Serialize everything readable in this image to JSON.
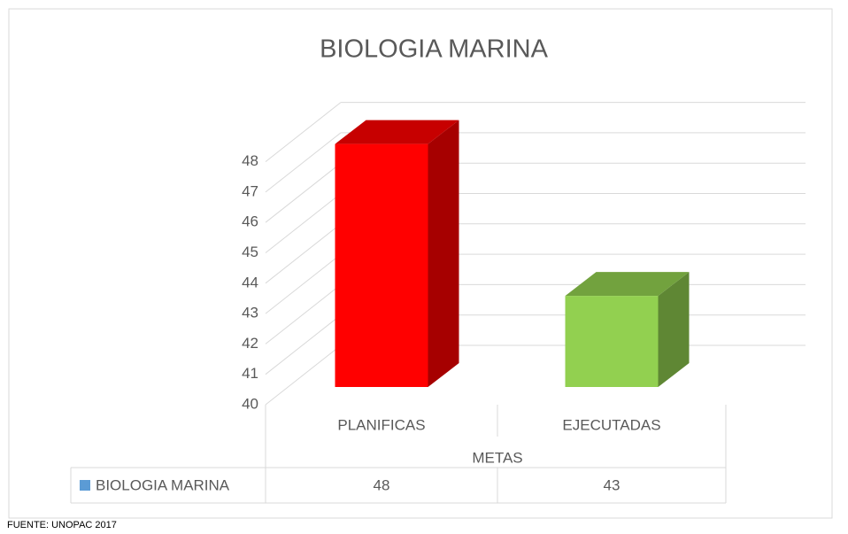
{
  "chart_data": {
    "type": "bar3d",
    "title": "BIOLOGIA MARINA",
    "categories": [
      "PLANIFICAS",
      "EJECUTADAS"
    ],
    "series": [
      {
        "name": "BIOLOGIA MARINA",
        "color": "#5b9bd5",
        "point_colors": [
          "#ff0000",
          "#92d050"
        ],
        "values": [
          48,
          43
        ]
      }
    ],
    "x_label": "METAS",
    "ylim": [
      40,
      48
    ],
    "yticks": [
      40,
      41,
      42,
      43,
      44,
      45,
      46,
      47,
      48
    ],
    "grid": true,
    "source": "FUENTE: UNOPAC 2017"
  }
}
